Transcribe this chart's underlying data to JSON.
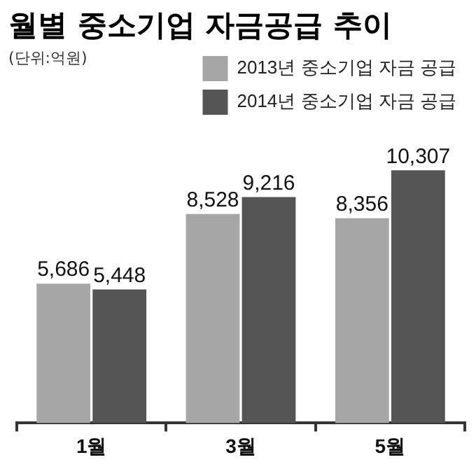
{
  "chart_data": {
    "type": "bar",
    "title": "월별 중소기업 자금공급 추이",
    "subtitle": "(단위:억원)",
    "categories": [
      "1월",
      "3월",
      "5월"
    ],
    "series": [
      {
        "name": "2013년 중소기업 자금 공급",
        "color": "#a6a6a6",
        "values": [
          5686,
          8528,
          8356
        ],
        "value_labels": [
          "5,686",
          "8,528",
          "8,356"
        ]
      },
      {
        "name": "2014년 중소기업 자금 공급",
        "color": "#555555",
        "values": [
          5448,
          9216,
          10307
        ],
        "value_labels": [
          "5,448",
          "9,216",
          "10,307"
        ]
      }
    ],
    "relative": false,
    "grid": false,
    "legend": "top right"
  }
}
